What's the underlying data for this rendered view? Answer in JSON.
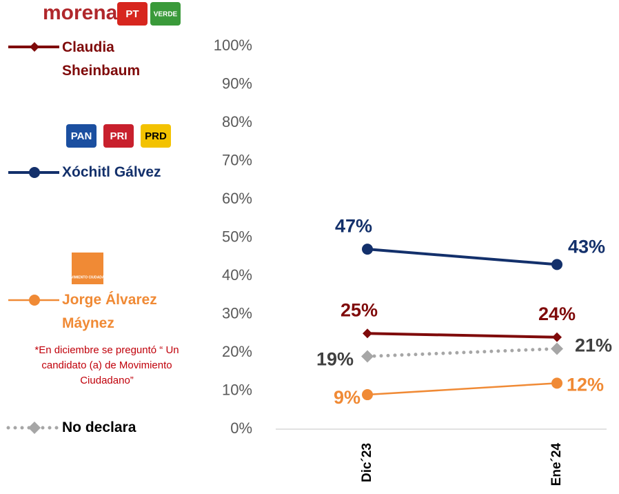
{
  "chart_data": {
    "type": "line",
    "categories": [
      "Dic´23",
      "Ene´24"
    ],
    "ylim": [
      0,
      100
    ],
    "yticks": [
      {
        "value": 0,
        "label": "0%"
      },
      {
        "value": 10,
        "label": "10%"
      },
      {
        "value": 20,
        "label": "20%"
      },
      {
        "value": 30,
        "label": "30%"
      },
      {
        "value": 40,
        "label": "40%"
      },
      {
        "value": 50,
        "label": "50%"
      },
      {
        "value": 60,
        "label": "60%"
      },
      {
        "value": 70,
        "label": "70%"
      },
      {
        "value": 80,
        "label": "80%"
      },
      {
        "value": 90,
        "label": "90%"
      },
      {
        "value": 100,
        "label": "100%"
      }
    ],
    "grid": false,
    "legend": "left",
    "series": [
      {
        "name": "Claudia Sheinbaum",
        "color": "#7f0a0a",
        "marker": "diamond",
        "style": "solid",
        "values": [
          25,
          24
        ],
        "value_labels": [
          "25%",
          "24%"
        ],
        "logos": [
          {
            "label": "morena",
            "color": "#b0272b"
          },
          {
            "label": "PT",
            "color": "#d7261e"
          },
          {
            "label": "VERDE",
            "color": "#3a9a3a"
          }
        ]
      },
      {
        "name": "Xóchitl Gálvez",
        "color": "#13306b",
        "marker": "circle",
        "style": "solid",
        "values": [
          47,
          43
        ],
        "value_labels": [
          "47%",
          "43%"
        ],
        "logos": [
          {
            "label": "PAN",
            "color": "#1b4fa0"
          },
          {
            "label": "PRI",
            "color": "#c8202d"
          },
          {
            "label": "PRD",
            "color": "#f3c200"
          }
        ]
      },
      {
        "name": "Jorge Álvarez Máynez",
        "color": "#f08a35",
        "marker": "circle",
        "style": "solid",
        "values": [
          9,
          12
        ],
        "value_labels": [
          "9%",
          "12%"
        ],
        "logos": [
          {
            "label": "MOVIMIENTO CIUDADANO",
            "color": "#f08a35"
          }
        ]
      },
      {
        "name": "No declara",
        "color": "#a6a6a6",
        "marker": "diamond",
        "style": "dotted",
        "values": [
          19,
          21
        ],
        "value_labels": [
          "19%",
          "21%"
        ]
      }
    ],
    "annotations": [
      "*En diciembre se preguntó “ Un candidato (a) de Movimiento Ciudadano”"
    ]
  }
}
